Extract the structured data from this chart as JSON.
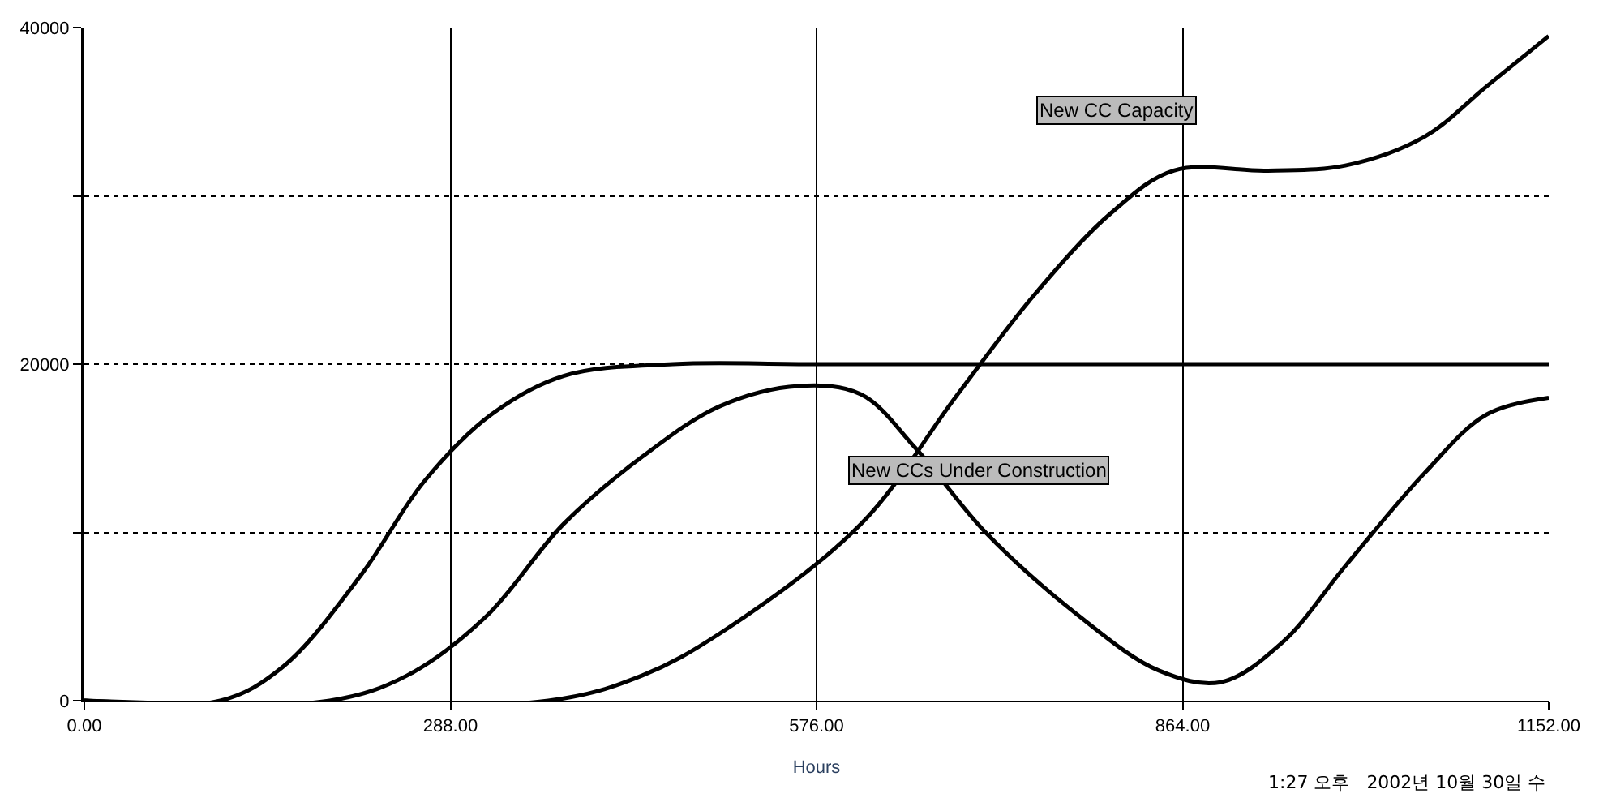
{
  "chart_data": {
    "type": "line",
    "xlabel": "Hours",
    "x": [
      0,
      107,
      156,
      218,
      267,
      320,
      377,
      463,
      576,
      864,
      1152
    ],
    "series": [
      {
        "color": "#000000",
        "values": [
          0,
          0,
          2000,
          7500,
          13000,
          17000,
          19300,
          20000,
          20000,
          20000,
          20000
        ]
      },
      {
        "color": "#000000",
        "x": [
          0,
          193,
          254,
          316,
          377,
          439,
          500,
          562,
          611,
          654,
          709,
          783,
          845,
          894,
          943,
          992,
          1054,
          1103,
          1152
        ],
        "values": [
          0,
          0,
          1500,
          5000,
          10500,
          14500,
          17500,
          18700,
          18200,
          15000,
          10000,
          5000,
          1800,
          1100,
          3500,
          8000,
          13500,
          17000,
          18000
        ]
      },
      {
        "color": "#000000",
        "x": [
          0,
          365,
          439,
          500,
          611,
          685,
          746,
          808,
          857,
          931,
          992,
          1054,
          1103,
          1152
        ],
        "values": [
          0,
          0,
          1500,
          4000,
          10500,
          18000,
          24000,
          29000,
          31500,
          31500,
          31800,
          33500,
          36500,
          39500
        ]
      }
    ],
    "xlim": [
      0,
      1152
    ],
    "ylim": [
      0,
      40000
    ],
    "xticks": [
      {
        "value": 0,
        "label": "0.00"
      },
      {
        "value": 288,
        "label": "288.00"
      },
      {
        "value": 576,
        "label": "576.00"
      },
      {
        "value": 864,
        "label": "864.00"
      },
      {
        "value": 1152,
        "label": "1152.00"
      }
    ],
    "yticks": [
      0,
      {
        "value": 10000,
        "label": null
      },
      20000,
      {
        "value": 30000,
        "label": null
      },
      40000
    ],
    "grid": true,
    "line_style": "solid",
    "marker": "none",
    "annotations": [
      "New CC Capacity",
      "New CCs Under Construction",
      "1:27 오후   2002년 10월 30일 수"
    ]
  }
}
